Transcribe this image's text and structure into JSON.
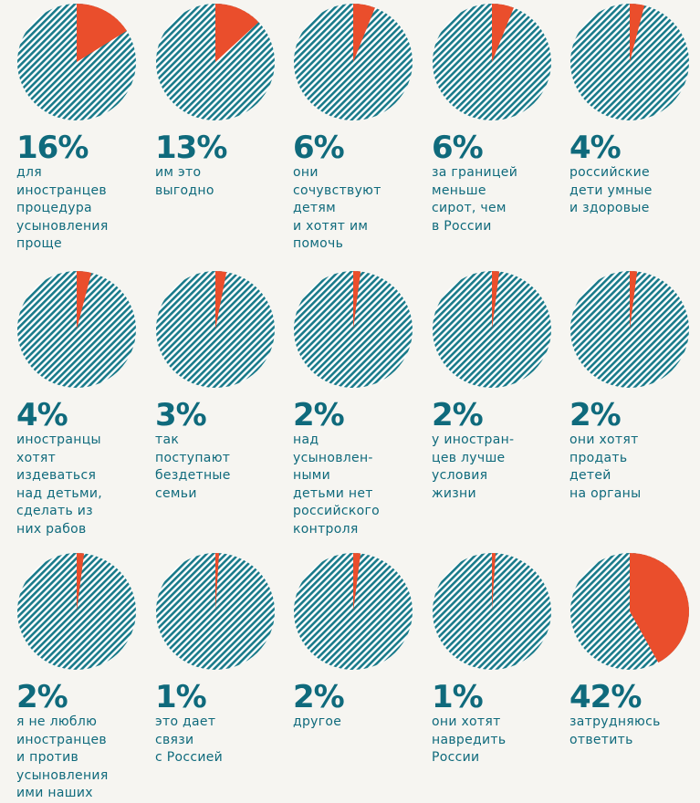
{
  "chart_data": {
    "type": "pie",
    "accent_color": "#ea4e2c",
    "base_color": "#197a8a",
    "pattern": "diagonal-hatch",
    "items": [
      {
        "value": 16,
        "value_label": "16%",
        "text_lines": [
          "для",
          "иностранцев",
          "процедура",
          "усыновления",
          "проще"
        ]
      },
      {
        "value": 13,
        "value_label": "13%",
        "text_lines": [
          "им это",
          "выгодно"
        ]
      },
      {
        "value": 6,
        "value_label": "6%",
        "text_lines": [
          "они",
          "сочувствуют",
          "детям",
          "и хотят им",
          "помочь"
        ]
      },
      {
        "value": 6,
        "value_label": "6%",
        "text_lines": [
          "за границей",
          "меньше",
          "сирот, чем",
          "в России"
        ]
      },
      {
        "value": 4,
        "value_label": "4%",
        "text_lines": [
          "российские",
          "дети умные",
          "и здоровые"
        ]
      },
      {
        "value": 4,
        "value_label": "4%",
        "text_lines": [
          "иностранцы",
          "хотят",
          "издеваться",
          "над детьми,",
          "сделать из",
          "них рабов"
        ]
      },
      {
        "value": 3,
        "value_label": "3%",
        "text_lines": [
          "так",
          "поступают",
          "бездетные",
          "семьи"
        ]
      },
      {
        "value": 2,
        "value_label": "2%",
        "text_lines": [
          "над",
          "усыновлен-",
          "ными",
          "детьми нет",
          "российского",
          "контроля"
        ]
      },
      {
        "value": 2,
        "value_label": "2%",
        "text_lines": [
          "у иностран-",
          "цев лучше",
          "условия",
          "жизни"
        ]
      },
      {
        "value": 2,
        "value_label": "2%",
        "text_lines": [
          "они хотят",
          "продать",
          "детей",
          "на органы"
        ]
      },
      {
        "value": 2,
        "value_label": "2%",
        "text_lines": [
          "я не люблю",
          "иностранцев",
          "и против",
          "усыновления",
          "ими наших"
        ]
      },
      {
        "value": 1,
        "value_label": "1%",
        "text_lines": [
          "это дает",
          "связи",
          "с Россией"
        ]
      },
      {
        "value": 2,
        "value_label": "2%",
        "text_lines": [
          "другое"
        ]
      },
      {
        "value": 1,
        "value_label": "1%",
        "text_lines": [
          "они хотят",
          "навредить",
          "России"
        ]
      },
      {
        "value": 42,
        "value_label": "42%",
        "text_lines": [
          "затрудняюсь",
          "ответить"
        ]
      }
    ]
  }
}
